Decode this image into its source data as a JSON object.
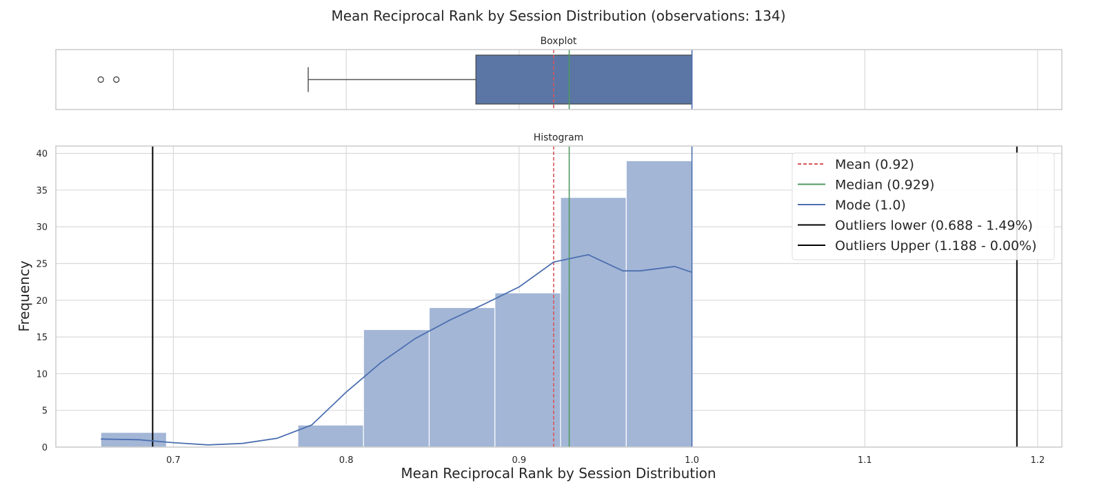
{
  "title": "Mean Reciprocal Rank by Session Distribution (observations: 134)",
  "chart_data": [
    {
      "type": "box",
      "subtitle": "Boxplot",
      "x_range": [
        0.632,
        1.214
      ],
      "x_ticks": [
        0.7,
        0.8,
        0.9,
        1.0,
        1.1,
        1.2
      ],
      "grid": true,
      "box": {
        "q1": 0.875,
        "median": 0.929,
        "q3": 1.0,
        "whisker_low": 0.778,
        "whisker_high": 1.0,
        "mean": 0.92
      },
      "outliers": [
        0.658,
        0.667
      ],
      "colors": {
        "box": "#5b76a4",
        "mean": "#d9545a",
        "median": "#4e9a5f",
        "mode": "#4c6fb0"
      }
    },
    {
      "type": "bar",
      "subtitle": "Histogram",
      "xlabel": "Mean Reciprocal Rank by Session Distribution",
      "ylabel": "Frequency",
      "x_range": [
        0.632,
        1.214
      ],
      "y_range": [
        0,
        41
      ],
      "x_ticks": [
        0.7,
        0.8,
        0.9,
        1.0,
        1.1,
        1.2
      ],
      "y_ticks": [
        0,
        5,
        10,
        15,
        20,
        25,
        30,
        35,
        40
      ],
      "grid": true,
      "bins": [
        {
          "start": 0.658,
          "end": 0.696,
          "count": 2
        },
        {
          "start": 0.696,
          "end": 0.734,
          "count": 0
        },
        {
          "start": 0.734,
          "end": 0.772,
          "count": 0
        },
        {
          "start": 0.772,
          "end": 0.81,
          "count": 3
        },
        {
          "start": 0.81,
          "end": 0.848,
          "count": 16
        },
        {
          "start": 0.848,
          "end": 0.886,
          "count": 19
        },
        {
          "start": 0.886,
          "end": 0.924,
          "count": 21
        },
        {
          "start": 0.924,
          "end": 0.962,
          "count": 34
        },
        {
          "start": 0.962,
          "end": 1.0,
          "count": 39
        }
      ],
      "kde": [
        [
          0.658,
          1.1
        ],
        [
          0.68,
          1.0
        ],
        [
          0.7,
          0.6
        ],
        [
          0.72,
          0.3
        ],
        [
          0.74,
          0.5
        ],
        [
          0.76,
          1.2
        ],
        [
          0.78,
          3.0
        ],
        [
          0.8,
          7.5
        ],
        [
          0.82,
          11.5
        ],
        [
          0.84,
          14.8
        ],
        [
          0.86,
          17.3
        ],
        [
          0.88,
          19.5
        ],
        [
          0.9,
          21.8
        ],
        [
          0.92,
          25.2
        ],
        [
          0.94,
          26.2
        ],
        [
          0.96,
          24.0
        ],
        [
          0.97,
          24.0
        ],
        [
          0.99,
          24.6
        ],
        [
          1.0,
          23.8
        ]
      ],
      "reference_lines": [
        {
          "label": "Mean (0.92)",
          "x": 0.92,
          "color": "#d9545a",
          "style": "dashed"
        },
        {
          "label": "Median (0.929)",
          "x": 0.929,
          "color": "#4e9a5f",
          "style": "solid"
        },
        {
          "label": "Mode (1.0)",
          "x": 1.0,
          "color": "#4c6fb0",
          "style": "solid"
        },
        {
          "label": "Outliers lower (0.688 - 1.49%)",
          "x": 0.688,
          "color": "#000000",
          "style": "solid"
        },
        {
          "label": "Outliers Upper (1.188 - 0.00%)",
          "x": 1.188,
          "color": "#000000",
          "style": "solid"
        }
      ],
      "legend_position": "top-right",
      "colors": {
        "bar": "#a3b6d6",
        "kde": "#4c6fb0"
      }
    }
  ]
}
